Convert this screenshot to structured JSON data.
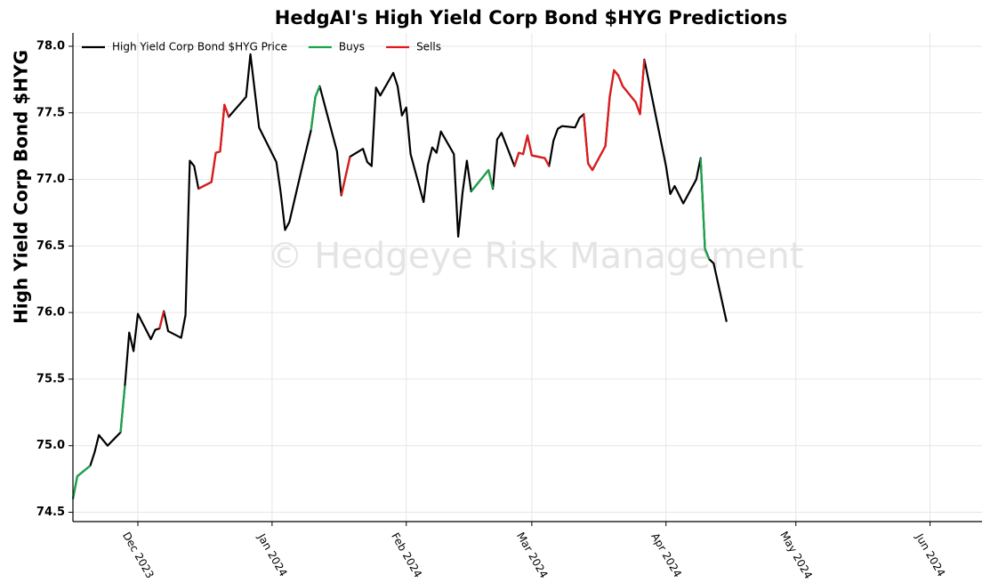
{
  "chart_data": {
    "type": "line",
    "title": "HedgAI's High Yield Corp Bond $HYG Predictions",
    "ylabel": "High Yield Corp Bond $HYG",
    "watermark": "© Hedgeye Risk Management",
    "x": [
      "2023-11-16",
      "2023-11-17",
      "2023-11-20",
      "2023-11-21",
      "2023-11-22",
      "2023-11-24",
      "2023-11-27",
      "2023-11-28",
      "2023-11-29",
      "2023-11-30",
      "2023-12-01",
      "2023-12-04",
      "2023-12-05",
      "2023-12-06",
      "2023-12-07",
      "2023-12-08",
      "2023-12-11",
      "2023-12-12",
      "2023-12-13",
      "2023-12-14",
      "2023-12-15",
      "2023-12-18",
      "2023-12-19",
      "2023-12-20",
      "2023-12-21",
      "2023-12-22",
      "2023-12-26",
      "2023-12-27",
      "2023-12-29",
      "2024-01-02",
      "2024-01-03",
      "2024-01-04",
      "2024-01-05",
      "2024-01-08",
      "2024-01-10",
      "2024-01-11",
      "2024-01-12",
      "2024-01-16",
      "2024-01-17",
      "2024-01-19",
      "2024-01-22",
      "2024-01-23",
      "2024-01-24",
      "2024-01-25",
      "2024-01-26",
      "2024-01-29",
      "2024-01-30",
      "2024-01-31",
      "2024-02-01",
      "2024-02-02",
      "2024-02-05",
      "2024-02-06",
      "2024-02-07",
      "2024-02-08",
      "2024-02-09",
      "2024-02-12",
      "2024-02-13",
      "2024-02-14",
      "2024-02-15",
      "2024-02-16",
      "2024-02-20",
      "2024-02-21",
      "2024-02-22",
      "2024-02-23",
      "2024-02-26",
      "2024-02-27",
      "2024-02-28",
      "2024-02-29",
      "2024-03-01",
      "2024-03-04",
      "2024-03-05",
      "2024-03-06",
      "2024-03-07",
      "2024-03-08",
      "2024-03-11",
      "2024-03-12",
      "2024-03-13",
      "2024-03-14",
      "2024-03-15",
      "2024-03-18",
      "2024-03-19",
      "2024-03-20",
      "2024-03-21",
      "2024-03-22",
      "2024-03-25",
      "2024-03-26",
      "2024-03-27",
      "2024-04-01",
      "2024-04-02",
      "2024-04-03",
      "2024-04-05",
      "2024-04-08",
      "2024-04-09",
      "2024-04-10",
      "2024-04-11",
      "2024-04-12",
      "2024-04-15"
    ],
    "series": [
      {
        "name": "High Yield Corp Bond $HYG Price",
        "color": "#000000",
        "values": [
          74.6,
          74.77,
          74.85,
          74.95,
          75.08,
          75.0,
          75.1,
          75.45,
          75.85,
          75.71,
          75.99,
          75.8,
          75.87,
          75.88,
          76.01,
          75.86,
          75.81,
          75.98,
          77.14,
          77.1,
          76.93,
          76.98,
          77.2,
          77.21,
          77.56,
          77.47,
          77.62,
          77.94,
          77.39,
          77.13,
          76.9,
          76.62,
          76.68,
          77.1,
          77.37,
          77.62,
          77.7,
          77.21,
          76.88,
          77.17,
          77.23,
          77.13,
          77.1,
          77.69,
          77.63,
          77.8,
          77.7,
          77.48,
          77.54,
          77.19,
          76.83,
          77.11,
          77.24,
          77.2,
          77.36,
          77.19,
          76.57,
          76.9,
          77.14,
          76.91,
          77.07,
          76.93,
          77.3,
          77.35,
          77.1,
          77.2,
          77.19,
          77.33,
          77.18,
          77.16,
          77.1,
          77.29,
          77.38,
          77.4,
          77.39,
          77.46,
          77.49,
          77.12,
          77.07,
          77.25,
          77.62,
          77.82,
          77.78,
          77.7,
          77.58,
          77.49,
          77.9,
          77.1,
          76.89,
          76.95,
          76.82,
          77.0,
          77.16,
          76.48,
          76.4,
          76.37,
          75.93
        ]
      },
      {
        "name": "Buys",
        "color": "#1aa64b",
        "values": [
          74.6,
          74.77,
          74.85,
          null,
          null,
          null,
          75.1,
          75.45,
          null,
          null,
          null,
          null,
          null,
          null,
          null,
          null,
          null,
          null,
          null,
          null,
          null,
          null,
          null,
          null,
          null,
          null,
          null,
          null,
          null,
          null,
          null,
          null,
          null,
          null,
          77.37,
          77.62,
          77.7,
          null,
          null,
          null,
          null,
          null,
          null,
          null,
          null,
          null,
          null,
          null,
          null,
          null,
          null,
          null,
          null,
          null,
          null,
          null,
          null,
          null,
          null,
          76.91,
          77.07,
          76.93,
          null,
          null,
          null,
          null,
          null,
          null,
          null,
          null,
          null,
          null,
          null,
          null,
          null,
          null,
          null,
          null,
          null,
          null,
          null,
          null,
          null,
          null,
          null,
          null,
          null,
          null,
          null,
          null,
          null,
          null,
          77.16,
          76.48,
          76.4,
          null,
          null
        ]
      },
      {
        "name": "Sells",
        "color": "#e31a1c",
        "values": [
          null,
          null,
          null,
          null,
          null,
          null,
          null,
          null,
          null,
          null,
          null,
          null,
          null,
          75.88,
          76.01,
          null,
          null,
          null,
          null,
          null,
          76.93,
          76.98,
          77.2,
          77.21,
          77.56,
          77.47,
          null,
          null,
          null,
          null,
          null,
          null,
          null,
          null,
          null,
          null,
          null,
          null,
          76.88,
          77.17,
          null,
          null,
          null,
          null,
          null,
          null,
          null,
          null,
          null,
          null,
          null,
          null,
          null,
          null,
          null,
          null,
          null,
          null,
          null,
          null,
          null,
          null,
          null,
          null,
          77.1,
          77.2,
          77.19,
          77.33,
          77.18,
          77.16,
          77.1,
          null,
          null,
          null,
          null,
          null,
          77.49,
          77.12,
          77.07,
          77.25,
          77.62,
          77.82,
          77.78,
          77.7,
          77.58,
          77.49,
          77.9,
          null,
          null,
          null,
          null,
          null,
          null,
          null,
          null,
          null,
          null
        ]
      }
    ],
    "xlim": [
      "2023-11-16",
      "2024-06-13"
    ],
    "xticks": [
      {
        "value": "2023-12-01",
        "label": "Dec 2023"
      },
      {
        "value": "2024-01-01",
        "label": "Jan 2024"
      },
      {
        "value": "2024-02-01",
        "label": "Feb 2024"
      },
      {
        "value": "2024-03-01",
        "label": "Mar 2024"
      },
      {
        "value": "2024-04-01",
        "label": "Apr 2024"
      },
      {
        "value": "2024-05-01",
        "label": "May 2024"
      },
      {
        "value": "2024-06-01",
        "label": "Jun 2024"
      }
    ],
    "ylim": [
      74.43,
      78.1
    ],
    "yticks": [
      {
        "value": 74.5,
        "label": "74.5"
      },
      {
        "value": 75,
        "label": "75.0"
      },
      {
        "value": 75.5,
        "label": "75.5"
      },
      {
        "value": 76,
        "label": "76.0"
      },
      {
        "value": 76.5,
        "label": "76.5"
      },
      {
        "value": 77,
        "label": "77.0"
      },
      {
        "value": 77.5,
        "label": "77.5"
      },
      {
        "value": 78,
        "label": "78.0"
      }
    ],
    "grid": true,
    "legend": "upper left"
  }
}
